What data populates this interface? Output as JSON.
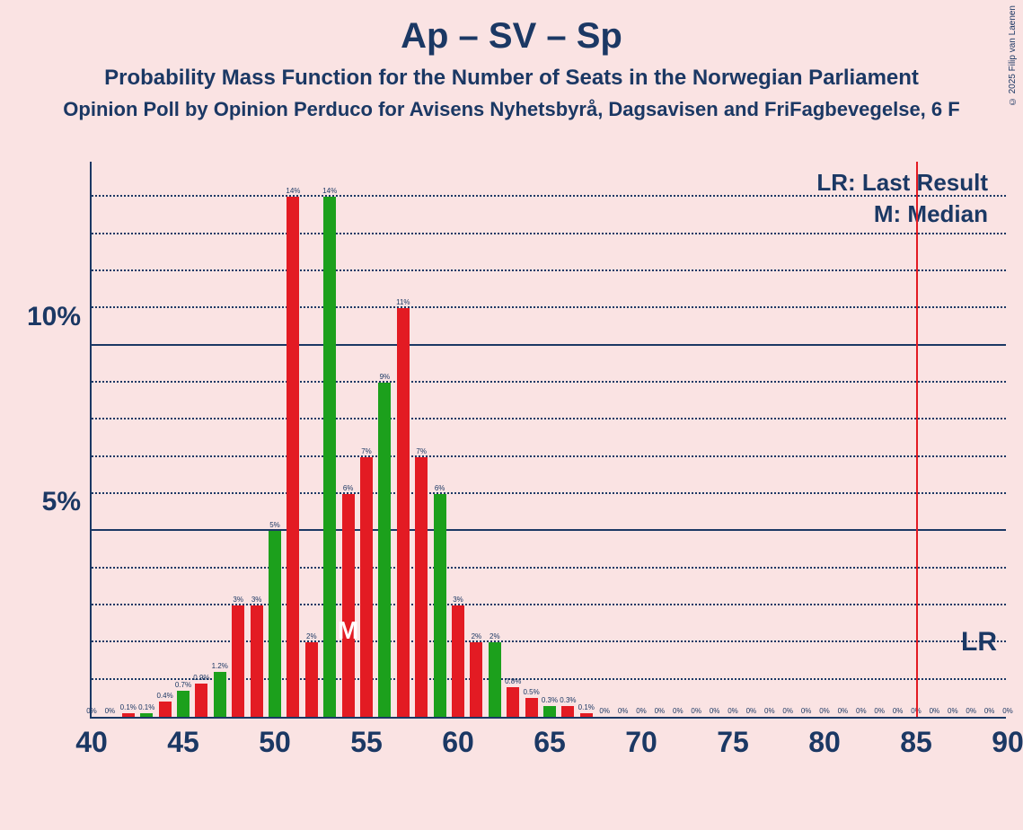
{
  "title": "Ap – SV – Sp",
  "subtitle": "Probability Mass Function for the Number of Seats in the Norwegian Parliament",
  "subtitle2": "Opinion Poll by Opinion Perduco for Avisens Nyhetsbyrå, Dagsavisen and FriFagbevegelse, 6 F",
  "copyright": "© 2025 Filip van Laenen",
  "legend_lr": "LR: Last Result",
  "legend_m": "M: Median",
  "lr_text": "LR",
  "median_text": "M",
  "chart": {
    "type": "bar",
    "x_min": 40,
    "x_max": 90,
    "y_max": 15,
    "y_ticks_major": [
      5,
      10
    ],
    "y_ticks_minor": [
      1,
      2,
      3,
      4,
      6,
      7,
      8,
      9,
      11,
      12,
      13,
      14
    ],
    "x_ticks": [
      40,
      45,
      50,
      55,
      60,
      65,
      70,
      75,
      80,
      85,
      90
    ],
    "background": "#fae3e3",
    "axis_color": "#1b3864",
    "grid_color": "#1b3864",
    "bar_red": "#e31b23",
    "bar_green": "#1ca01c",
    "lr_position": 85,
    "median_position": 54,
    "bars": [
      {
        "x": 40,
        "v": 0,
        "lbl": "0%",
        "c": "red"
      },
      {
        "x": 41,
        "v": 0,
        "lbl": "0%",
        "c": "red"
      },
      {
        "x": 42,
        "v": 0.1,
        "lbl": "0.1%",
        "c": "red"
      },
      {
        "x": 43,
        "v": 0.1,
        "lbl": "0.1%",
        "c": "green"
      },
      {
        "x": 44,
        "v": 0.4,
        "lbl": "0.4%",
        "c": "red"
      },
      {
        "x": 45,
        "v": 0.7,
        "lbl": "0.7%",
        "c": "green"
      },
      {
        "x": 46,
        "v": 0.9,
        "lbl": "0.9%",
        "c": "red"
      },
      {
        "x": 47,
        "v": 1.2,
        "lbl": "1.2%",
        "c": "green"
      },
      {
        "x": 48,
        "v": 3,
        "lbl": "3%",
        "c": "red"
      },
      {
        "x": 49,
        "v": 3,
        "lbl": "3%",
        "c": "red"
      },
      {
        "x": 50,
        "v": 5,
        "lbl": "5%",
        "c": "green"
      },
      {
        "x": 51,
        "v": 14,
        "lbl": "14%",
        "c": "red"
      },
      {
        "x": 52,
        "v": 2,
        "lbl": "2%",
        "c": "red"
      },
      {
        "x": 53,
        "v": 14,
        "lbl": "14%",
        "c": "green"
      },
      {
        "x": 54,
        "v": 6,
        "lbl": "6%",
        "c": "red"
      },
      {
        "x": 55,
        "v": 7,
        "lbl": "7%",
        "c": "red"
      },
      {
        "x": 56,
        "v": 9,
        "lbl": "9%",
        "c": "green"
      },
      {
        "x": 57,
        "v": 11,
        "lbl": "11%",
        "c": "red"
      },
      {
        "x": 58,
        "v": 7,
        "lbl": "7%",
        "c": "red"
      },
      {
        "x": 59,
        "v": 6,
        "lbl": "6%",
        "c": "green"
      },
      {
        "x": 60,
        "v": 3,
        "lbl": "3%",
        "c": "red"
      },
      {
        "x": 61,
        "v": 2,
        "lbl": "2%",
        "c": "red"
      },
      {
        "x": 62,
        "v": 2,
        "lbl": "2%",
        "c": "green"
      },
      {
        "x": 63,
        "v": 0.8,
        "lbl": "0.8%",
        "c": "red"
      },
      {
        "x": 64,
        "v": 0.5,
        "lbl": "0.5%",
        "c": "red"
      },
      {
        "x": 65,
        "v": 0.3,
        "lbl": "0.3%",
        "c": "green"
      },
      {
        "x": 66,
        "v": 0.3,
        "lbl": "0.3%",
        "c": "red"
      },
      {
        "x": 67,
        "v": 0.1,
        "lbl": "0.1%",
        "c": "red"
      },
      {
        "x": 68,
        "v": 0,
        "lbl": "0%",
        "c": "red"
      },
      {
        "x": 69,
        "v": 0,
        "lbl": "0%",
        "c": "red"
      },
      {
        "x": 70,
        "v": 0,
        "lbl": "0%",
        "c": "red"
      },
      {
        "x": 71,
        "v": 0,
        "lbl": "0%",
        "c": "red"
      },
      {
        "x": 72,
        "v": 0,
        "lbl": "0%",
        "c": "red"
      },
      {
        "x": 73,
        "v": 0,
        "lbl": "0%",
        "c": "red"
      },
      {
        "x": 74,
        "v": 0,
        "lbl": "0%",
        "c": "red"
      },
      {
        "x": 75,
        "v": 0,
        "lbl": "0%",
        "c": "red"
      },
      {
        "x": 76,
        "v": 0,
        "lbl": "0%",
        "c": "red"
      },
      {
        "x": 77,
        "v": 0,
        "lbl": "0%",
        "c": "red"
      },
      {
        "x": 78,
        "v": 0,
        "lbl": "0%",
        "c": "red"
      },
      {
        "x": 79,
        "v": 0,
        "lbl": "0%",
        "c": "red"
      },
      {
        "x": 80,
        "v": 0,
        "lbl": "0%",
        "c": "red"
      },
      {
        "x": 81,
        "v": 0,
        "lbl": "0%",
        "c": "red"
      },
      {
        "x": 82,
        "v": 0,
        "lbl": "0%",
        "c": "red"
      },
      {
        "x": 83,
        "v": 0,
        "lbl": "0%",
        "c": "red"
      },
      {
        "x": 84,
        "v": 0,
        "lbl": "0%",
        "c": "red"
      },
      {
        "x": 85,
        "v": 0,
        "lbl": "0%",
        "c": "red"
      },
      {
        "x": 86,
        "v": 0,
        "lbl": "0%",
        "c": "red"
      },
      {
        "x": 87,
        "v": 0,
        "lbl": "0%",
        "c": "red"
      },
      {
        "x": 88,
        "v": 0,
        "lbl": "0%",
        "c": "red"
      },
      {
        "x": 89,
        "v": 0,
        "lbl": "0%",
        "c": "red"
      },
      {
        "x": 90,
        "v": 0,
        "lbl": "0%",
        "c": "red"
      }
    ]
  }
}
